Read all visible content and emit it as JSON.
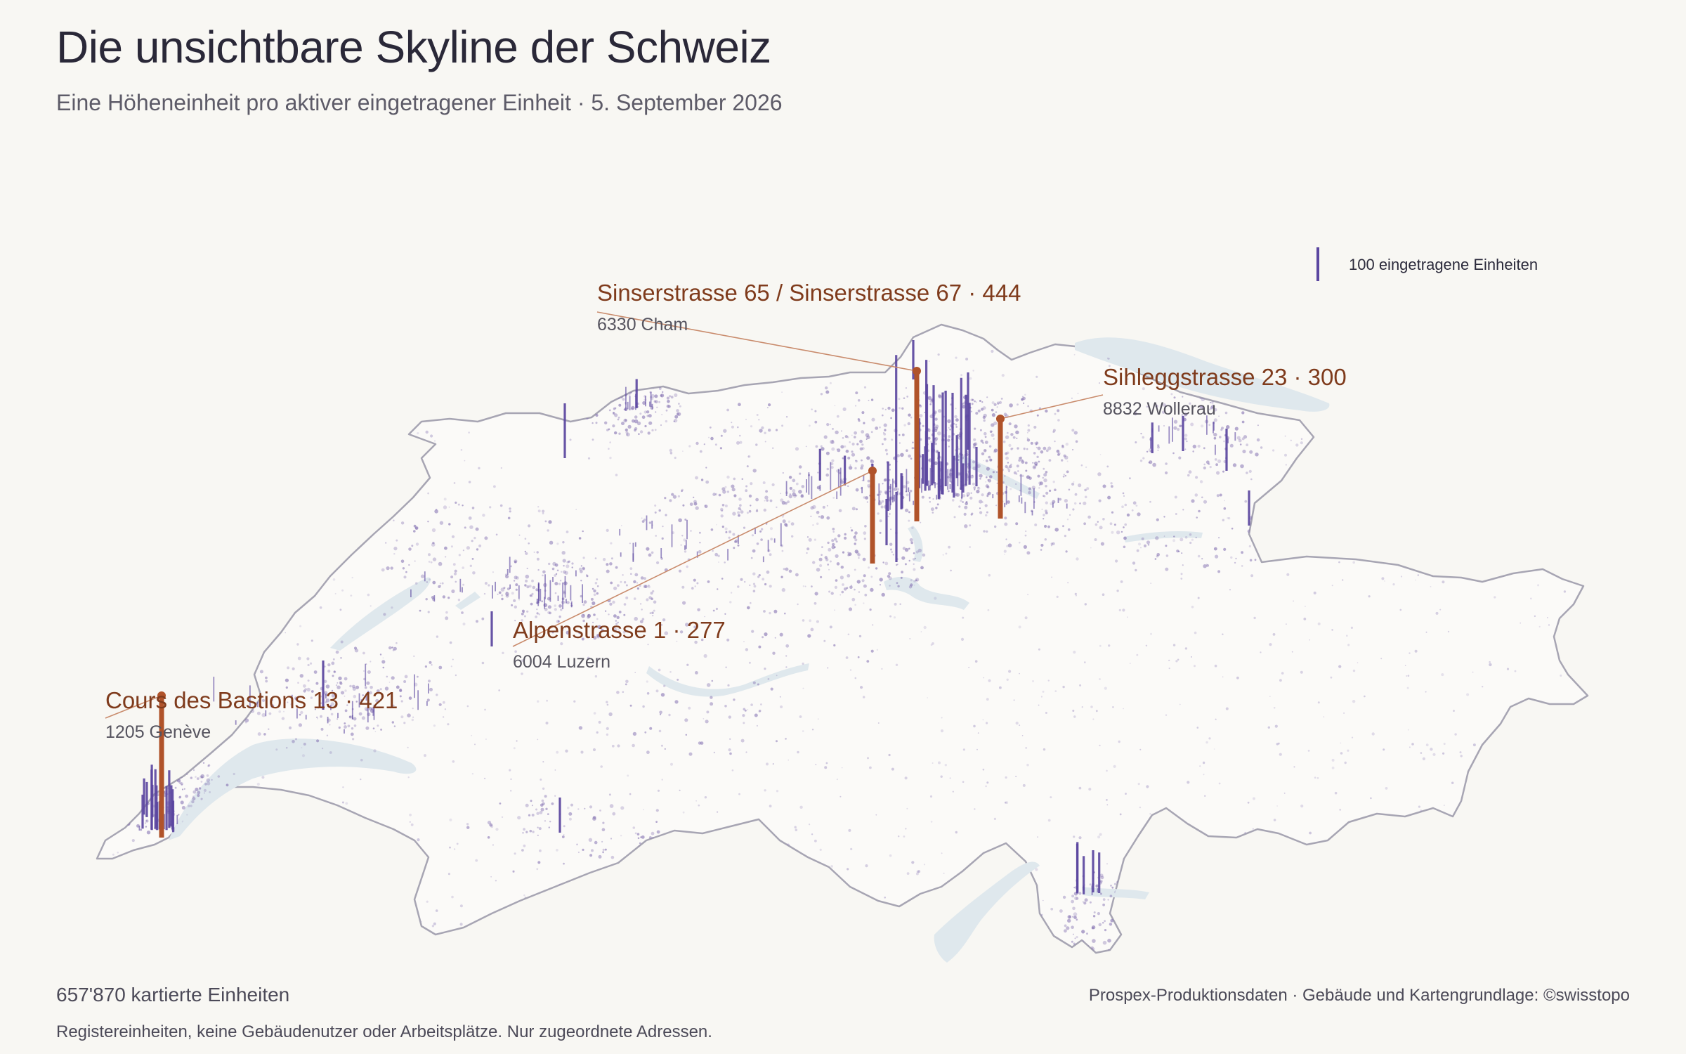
{
  "header": {
    "title": "Die unsichtbare Skyline der Schweiz",
    "subtitle": "Eine Höheneinheit pro aktiver eingetragener Einheit · 5. September 2026"
  },
  "legend": {
    "label": "100 eingetragene Einheiten",
    "units_per_bar": 100
  },
  "colors": {
    "background": "#f8f7f3",
    "spike": "#5b46a0",
    "highlight": "#b0532a",
    "callout_text": "#7f3b1c",
    "lake": "#dfe8ed",
    "border": "#a7a5b3"
  },
  "callouts": [
    {
      "title": "Sinserstrasse 65 / Sinserstrasse 67 · 444",
      "place": "6330 Cham",
      "units": 444
    },
    {
      "title": "Sihleggstrasse 23 · 300",
      "place": "8832 Wollerau",
      "units": 300
    },
    {
      "title": "Alpenstrasse 1 · 277",
      "place": "6004 Luzern",
      "units": 277
    },
    {
      "title": "Cours des Bastions 13 · 421",
      "place": "1205 Genève",
      "units": 421
    }
  ],
  "footer": {
    "count": "657'870 kartierte Einheiten",
    "note": "Registereinheiten, keine Gebäudenutzer oder Arbeitsplätze. Nur zugeordnete Adressen.",
    "source": "Prospex-Produktionsdaten · Gebäude und Kartengrundlage: ©swisstopo"
  }
}
